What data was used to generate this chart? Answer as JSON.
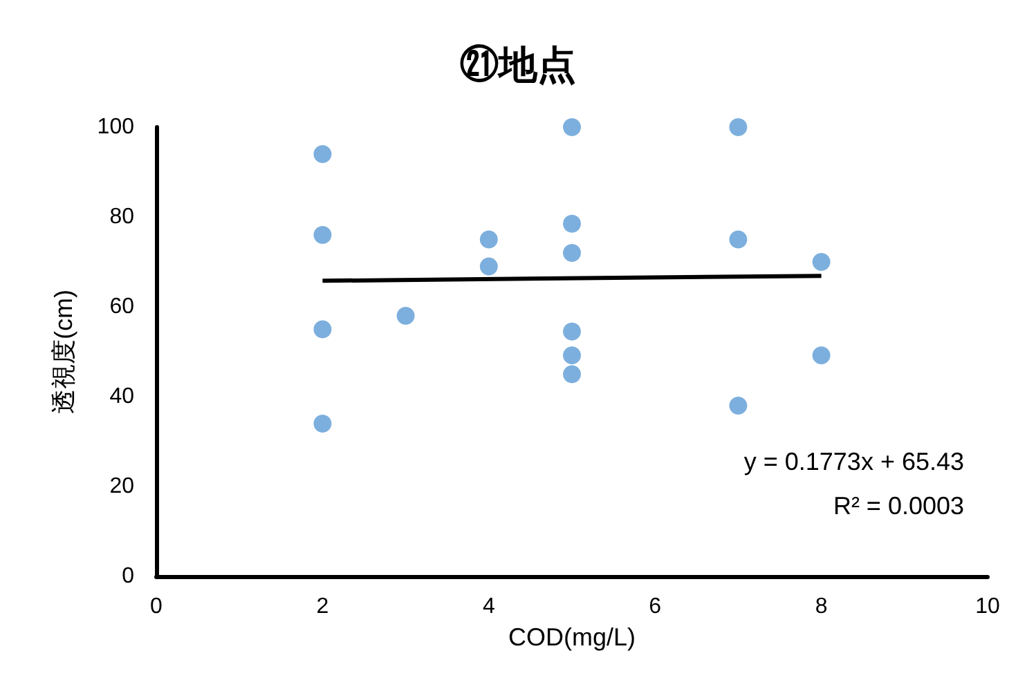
{
  "chart_data": {
    "type": "scatter",
    "title": "㉑地点",
    "xlabel": "COD(mg/L)",
    "ylabel": "透視度(cm)",
    "xlim": [
      0,
      10
    ],
    "xticks": [
      0,
      2,
      4,
      6,
      8,
      10
    ],
    "ylim": [
      0,
      100
    ],
    "yticks": [
      0,
      20,
      40,
      60,
      80,
      100
    ],
    "grid": false,
    "marker": "circle",
    "annotations": [
      "y = 0.1773x + 65.43",
      "R² = 0.0003"
    ],
    "series": [
      {
        "type": "scatter",
        "color": "#5b9bd5",
        "x": [
          2,
          2,
          2,
          2,
          3,
          4,
          4,
          5,
          5,
          5,
          5,
          5,
          5,
          7,
          7,
          7,
          8,
          8
        ],
        "values": [
          94,
          76,
          55,
          34,
          58,
          75,
          69,
          100,
          78.5,
          72,
          54.5,
          49.2,
          45,
          100,
          75,
          38,
          70,
          49.2
        ]
      },
      {
        "type": "line",
        "color": "#000000",
        "marker": "none",
        "line_style": "solid",
        "x": [
          2,
          8
        ],
        "values": [
          65.8,
          66.9
        ]
      }
    ]
  }
}
